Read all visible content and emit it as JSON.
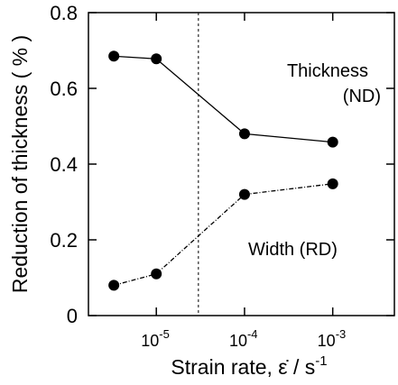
{
  "chart_data": {
    "type": "line",
    "xlabel": "Strain rate, ε̇ / s⁻¹",
    "ylabel": "Reduction of thickness ( % )",
    "xscale": "log",
    "xlim": [
      1.7e-06,
      0.005
    ],
    "ylim": [
      0,
      0.8
    ],
    "yticks": [
      {
        "value": 0,
        "label": "0"
      },
      {
        "value": 0.2,
        "label": "0.2"
      },
      {
        "value": 0.4,
        "label": "0.4"
      },
      {
        "value": 0.6,
        "label": "0.6"
      },
      {
        "value": 0.8,
        "label": "0.8"
      }
    ],
    "xticks": [
      {
        "value": 1e-05,
        "base": "10",
        "exp": "-5"
      },
      {
        "value": 0.0001,
        "base": "10",
        "exp": "-4"
      },
      {
        "value": 0.001,
        "base": "10",
        "exp": "-3"
      }
    ],
    "grid": false,
    "reference_line": {
      "x": 3e-05,
      "style": "dashed",
      "orientation": "vertical"
    },
    "series": [
      {
        "line_style": "solid",
        "x": [
          3.3e-06,
          1e-05,
          0.0001,
          0.001
        ],
        "y": [
          0.685,
          0.678,
          0.48,
          0.458
        ]
      },
      {
        "line_style": "dash-dot",
        "x": [
          3.3e-06,
          1e-05,
          0.0001,
          0.001
        ],
        "y": [
          0.08,
          0.11,
          0.32,
          0.348
        ]
      }
    ],
    "annotations": [
      {
        "lines": [
          "Thickness",
          "(ND)"
        ],
        "at_series": 0
      },
      {
        "lines": [
          "Width (RD)"
        ],
        "at_series": 1
      }
    ]
  }
}
